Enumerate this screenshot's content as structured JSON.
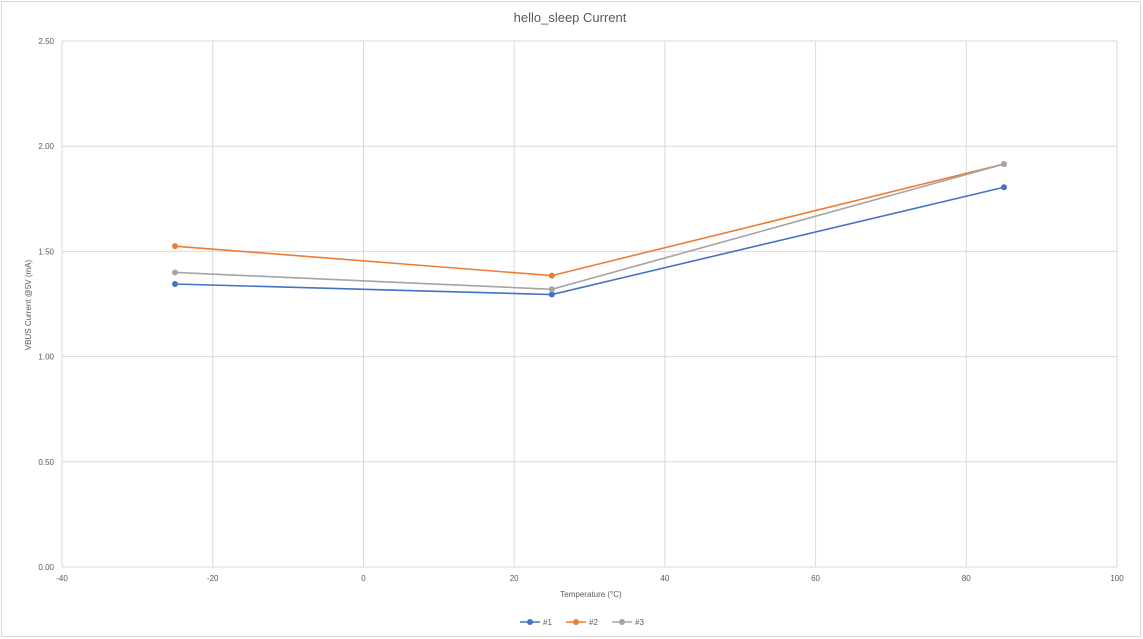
{
  "chart_data": {
    "type": "scatter",
    "title": "hello_sleep Current",
    "xlabel": "Temperature (°C)",
    "ylabel": "VBUS Current @5V (mA)",
    "xlim": [
      -40,
      100
    ],
    "ylim": [
      0,
      2.5
    ],
    "x_ticks": [
      "-40",
      "-20",
      "0",
      "20",
      "40",
      "60",
      "80",
      "100"
    ],
    "y_ticks": [
      "0.00",
      "0.50",
      "1.00",
      "1.50",
      "2.00",
      "2.50"
    ],
    "grid": true,
    "legend_position": "bottom",
    "series": [
      {
        "name": "#1",
        "color": "#4472c4",
        "x": [
          -25,
          25,
          85
        ],
        "y": [
          1.345,
          1.295,
          1.805
        ]
      },
      {
        "name": "#2",
        "color": "#ed7d31",
        "x": [
          -25,
          25,
          85
        ],
        "y": [
          1.525,
          1.385,
          1.915
        ]
      },
      {
        "name": "#3",
        "color": "#a5a5a5",
        "x": [
          -25,
          25,
          85
        ],
        "y": [
          1.4,
          1.32,
          1.915
        ]
      }
    ]
  }
}
